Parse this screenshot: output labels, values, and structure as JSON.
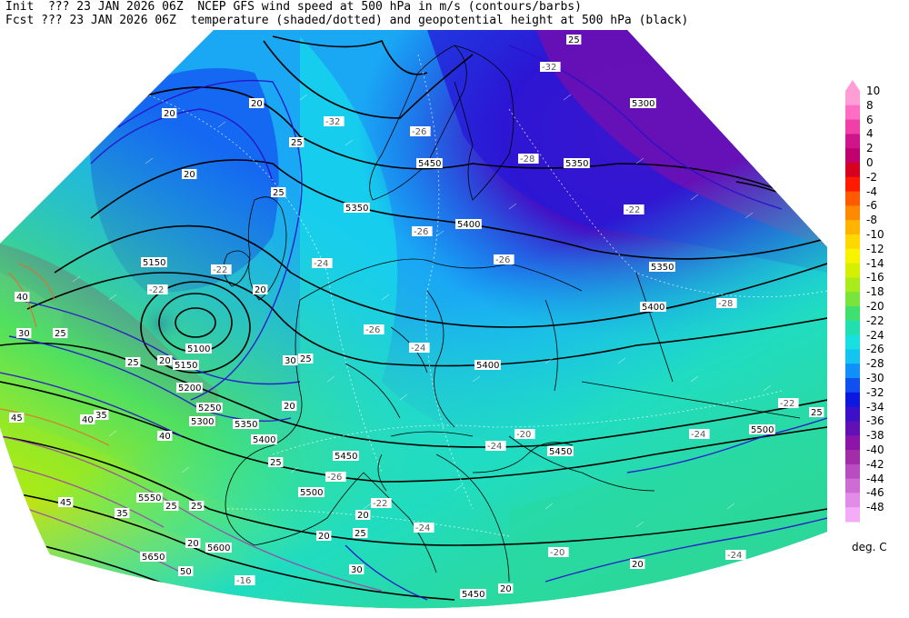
{
  "header": {
    "init_line": "Init  ??? 23 JAN 2026 06Z  NCEP GFS wind speed at 500 hPa in m/s (contours/barbs)",
    "fcst_line": "Fcst ??? 23 JAN 2026 06Z  temperature (shaded/dotted) and geopotential height at 500 hPa (black)"
  },
  "colorbar": {
    "units": "deg. C",
    "levels": [
      {
        "label": "10",
        "color": "#ff9ed6"
      },
      {
        "label": "8",
        "color": "#ff6ec4"
      },
      {
        "label": "6",
        "color": "#f040a8"
      },
      {
        "label": "4",
        "color": "#d0148c"
      },
      {
        "label": "2",
        "color": "#c0006c"
      },
      {
        "label": "0",
        "color": "#d80020"
      },
      {
        "label": "-2",
        "color": "#ff1a00"
      },
      {
        "label": "-4",
        "color": "#ff5a00"
      },
      {
        "label": "-6",
        "color": "#ff8a00"
      },
      {
        "label": "-8",
        "color": "#ffb400"
      },
      {
        "label": "-10",
        "color": "#ffd800"
      },
      {
        "label": "-12",
        "color": "#f8f400"
      },
      {
        "label": "-14",
        "color": "#d4f000"
      },
      {
        "label": "-16",
        "color": "#a8ec1c"
      },
      {
        "label": "-18",
        "color": "#78e43c"
      },
      {
        "label": "-20",
        "color": "#40e070"
      },
      {
        "label": "-22",
        "color": "#20e0b0"
      },
      {
        "label": "-24",
        "color": "#18e0e0"
      },
      {
        "label": "-26",
        "color": "#14c4f0"
      },
      {
        "label": "-28",
        "color": "#1090f8"
      },
      {
        "label": "-30",
        "color": "#1050f0"
      },
      {
        "label": "-32",
        "color": "#0c18e0"
      },
      {
        "label": "-34",
        "color": "#3c10c8"
      },
      {
        "label": "-36",
        "color": "#6010b4"
      },
      {
        "label": "-38",
        "color": "#8c14a8"
      },
      {
        "label": "-40",
        "color": "#a42ca8"
      },
      {
        "label": "-42",
        "color": "#b84cc0"
      },
      {
        "label": "-44",
        "color": "#cc6cd4"
      },
      {
        "label": "-46",
        "color": "#e08ce8"
      },
      {
        "label": "-48",
        "color": "#f4acf8"
      }
    ]
  },
  "height_labels": [
    "5300",
    "5350",
    "5450",
    "5350",
    "5400",
    "5150",
    "5350",
    "5400",
    "5100",
    "5150",
    "5200",
    "5250",
    "5300",
    "5350",
    "5400",
    "5400",
    "5450",
    "5450",
    "5500",
    "5500",
    "5550",
    "5600",
    "5650",
    "5450"
  ],
  "temp_labels": [
    "-32",
    "-32",
    "-26",
    "-28",
    "-26",
    "-26",
    "-28",
    "-26",
    "-24",
    "-22",
    "-24",
    "-22",
    "-22",
    "-24",
    "-24",
    "-22",
    "-26",
    "-20",
    "-22",
    "-24",
    "-20",
    "-16",
    "-24"
  ],
  "wind_labels": [
    "25",
    "20",
    "20",
    "20",
    "25",
    "25",
    "20",
    "40",
    "30",
    "25",
    "20",
    "25",
    "30",
    "35",
    "40",
    "25",
    "25",
    "20",
    "45",
    "40",
    "45",
    "35",
    "25",
    "25",
    "20",
    "30",
    "50",
    "20",
    "25",
    "20",
    "20",
    "20",
    "25"
  ]
}
